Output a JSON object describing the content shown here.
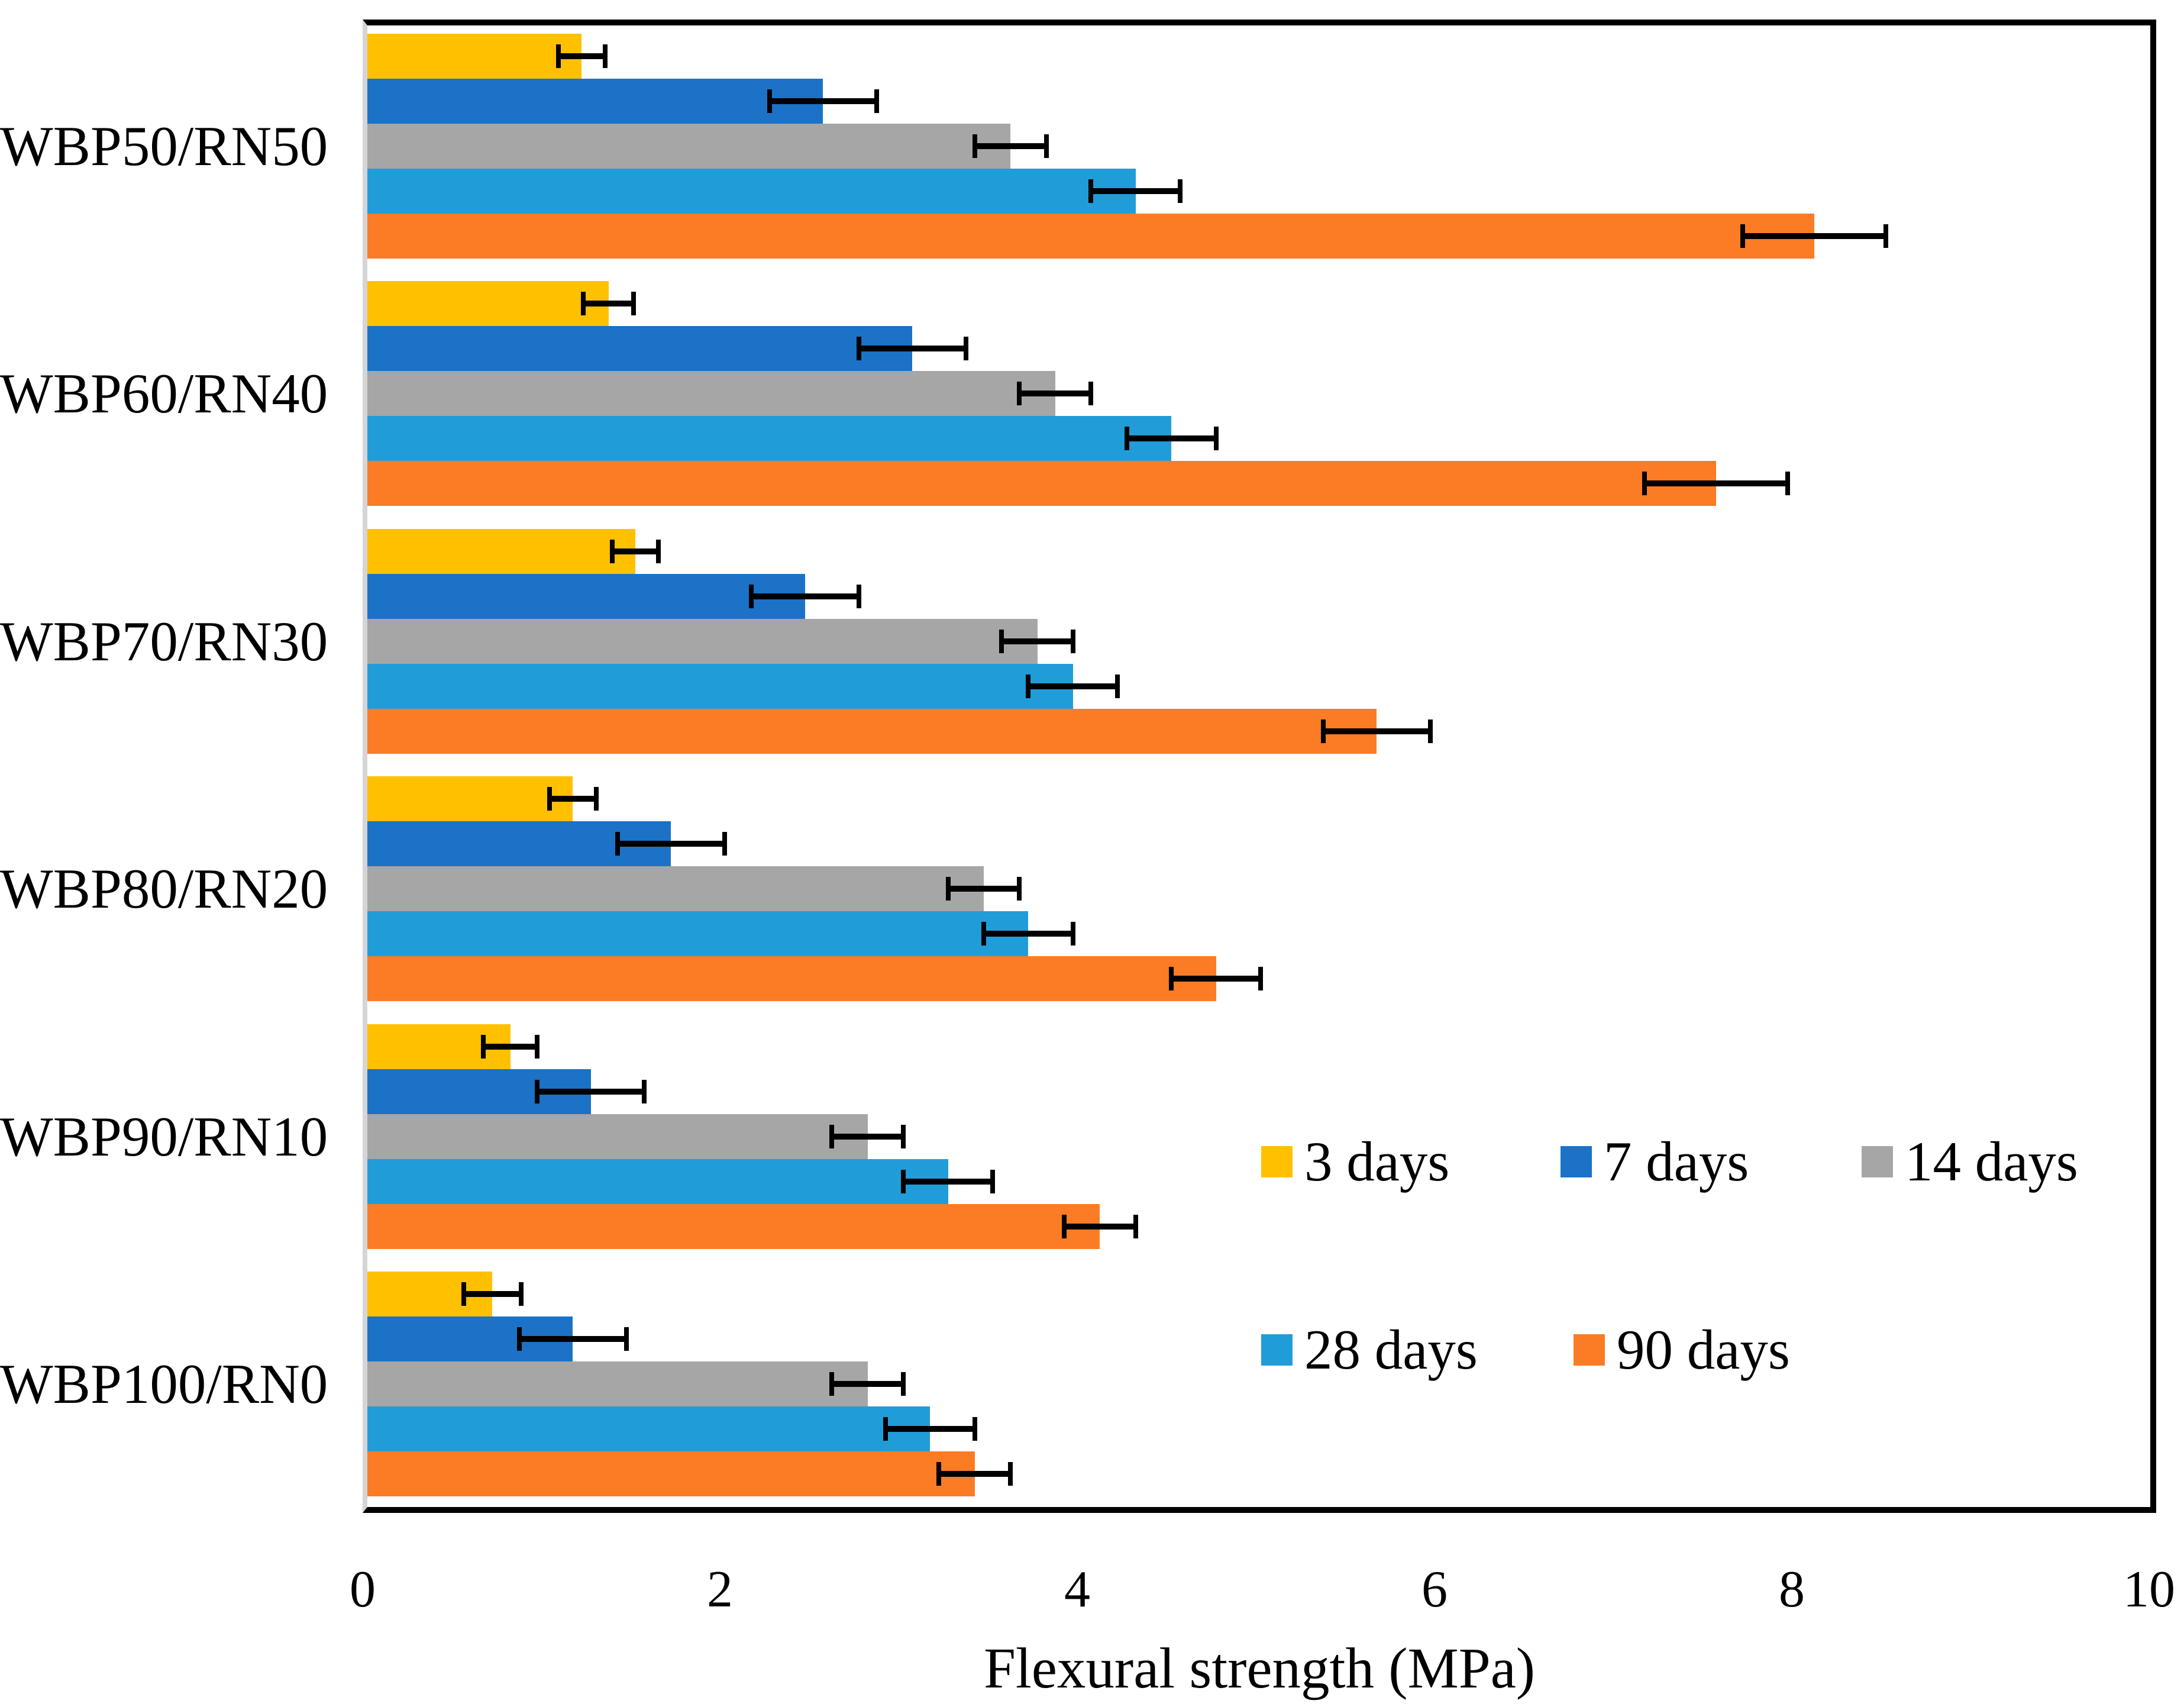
{
  "chart_data": {
    "type": "bar",
    "orientation": "horizontal",
    "title": "",
    "xlabel": "Flexural strength (MPa)",
    "ylabel": "",
    "xlim": [
      0,
      10
    ],
    "xticks": [
      "0",
      "2",
      "4",
      "6",
      "8",
      "10"
    ],
    "grid": false,
    "error_bars": true,
    "legend_position": "inside-lower-right, two rows",
    "categories": [
      "WBP50/RN50",
      "WBP60/RN40",
      "WBP70/RN30",
      "WBP80/RN20",
      "WBP90/RN10",
      "WBP100/RN0"
    ],
    "series": [
      {
        "name": "3 days",
        "color": "#FFC000",
        "values": [
          1.2,
          1.35,
          1.5,
          1.15,
          0.8,
          0.7
        ],
        "errors": [
          0.13,
          0.14,
          0.13,
          0.13,
          0.15,
          0.16
        ]
      },
      {
        "name": "7 days",
        "color": "#1B72C6",
        "values": [
          2.55,
          3.05,
          2.45,
          1.7,
          1.25,
          1.15
        ],
        "errors": [
          0.3,
          0.3,
          0.3,
          0.3,
          0.3,
          0.3
        ]
      },
      {
        "name": "14 days",
        "color": "#A6A6A6",
        "values": [
          3.6,
          3.85,
          3.75,
          3.45,
          2.8,
          2.8
        ],
        "errors": [
          0.2,
          0.2,
          0.2,
          0.2,
          0.2,
          0.2
        ]
      },
      {
        "name": "28 days",
        "color": "#209DD8",
        "values": [
          4.3,
          4.5,
          3.95,
          3.7,
          3.25,
          3.15
        ],
        "errors": [
          0.25,
          0.25,
          0.25,
          0.25,
          0.25,
          0.25
        ]
      },
      {
        "name": "90 days",
        "color": "#FB7C24",
        "values": [
          8.1,
          7.55,
          5.65,
          4.75,
          4.1,
          3.4
        ],
        "errors": [
          0.4,
          0.4,
          0.3,
          0.25,
          0.2,
          0.2
        ]
      }
    ],
    "legend_rows": [
      [
        "3 days",
        "7 days",
        "14 days"
      ],
      [
        "28 days",
        "90 days"
      ]
    ],
    "colors": {
      "axis_line": "#D5D5D7",
      "frame": "#000000",
      "error_bar": "#000000",
      "background": "#FFFFFF"
    }
  }
}
